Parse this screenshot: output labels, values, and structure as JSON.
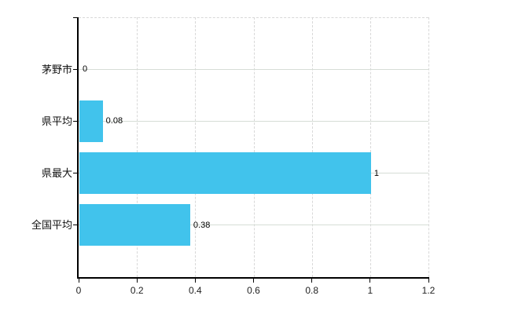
{
  "chart_data": {
    "type": "bar",
    "orientation": "horizontal",
    "title": "",
    "xlabel": "",
    "ylabel": "",
    "categories": [
      "茅野市",
      "県平均",
      "県最大",
      "全国平均"
    ],
    "values": [
      0,
      0.08,
      1,
      0.38
    ],
    "value_labels": [
      "0",
      "0.08",
      "1",
      "0.38"
    ],
    "x_ticks": [
      0,
      0.2,
      0.4,
      0.6,
      0.8,
      1,
      1.2
    ],
    "x_tick_labels": [
      "0",
      "0.2",
      "0.4",
      "0.6",
      "0.8",
      "1",
      "1.2"
    ],
    "xlim": [
      0,
      1.2
    ],
    "grid": true,
    "legend": false
  },
  "colors": {
    "bar": "#41c3ec",
    "axis": "#000000",
    "grid_horizontal": "#d6ddd6",
    "grid_vertical": "#d8d8d8",
    "plot_border_dashed": "#d8d8d8",
    "value_text": "#000000",
    "category_text": "#111111",
    "tick_text": "#222222",
    "background": "#ffffff"
  }
}
